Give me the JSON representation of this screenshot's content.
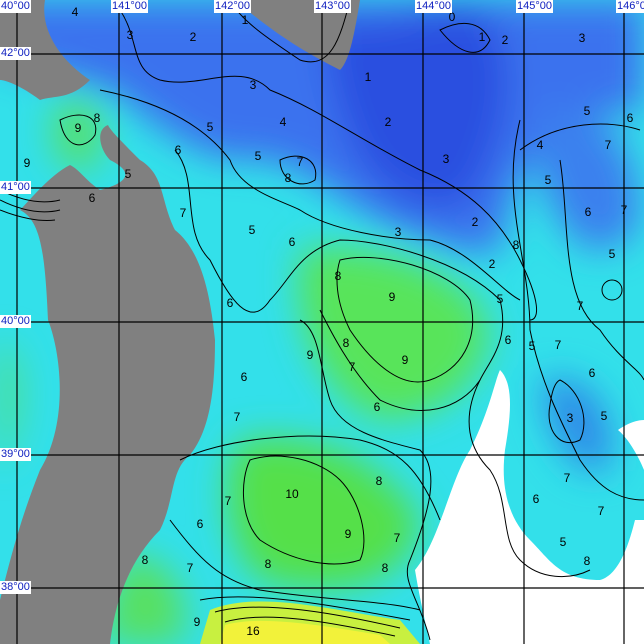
{
  "map": {
    "longitude_labels": [
      "40°00",
      "141°00",
      "142°00",
      "143°00",
      "144°00",
      "145°00",
      "146°00"
    ],
    "latitude_labels": [
      "42°00",
      "41°00",
      "40°00",
      "39°00",
      "38°00"
    ],
    "contour_labels": [
      "4",
      "3",
      "2",
      "1",
      "0",
      "1",
      "2",
      "3",
      "1",
      "3",
      "2",
      "4",
      "5",
      "9",
      "8",
      "6",
      "5",
      "7",
      "8",
      "9",
      "5",
      "6",
      "3",
      "4",
      "5",
      "6",
      "7",
      "5",
      "6",
      "7",
      "7",
      "5",
      "6",
      "3",
      "2",
      "8",
      "2",
      "5",
      "8",
      "9",
      "5",
      "6",
      "7",
      "6",
      "5",
      "8",
      "9",
      "9",
      "7",
      "7",
      "6",
      "6",
      "6",
      "7",
      "3",
      "5",
      "7",
      "8",
      "10",
      "7",
      "6",
      "9",
      "7",
      "6",
      "7",
      "5",
      "8",
      "8",
      "7",
      "8",
      "8",
      "9",
      "16"
    ],
    "colors": {
      "land": "#808080",
      "cold": "#2f5fe6",
      "cool": "#36a8f0",
      "mid": "#33e6e6",
      "warm": "#4fe070",
      "hot": "#f0f040",
      "grid": "#000000",
      "label_text": "#1020c0"
    }
  }
}
